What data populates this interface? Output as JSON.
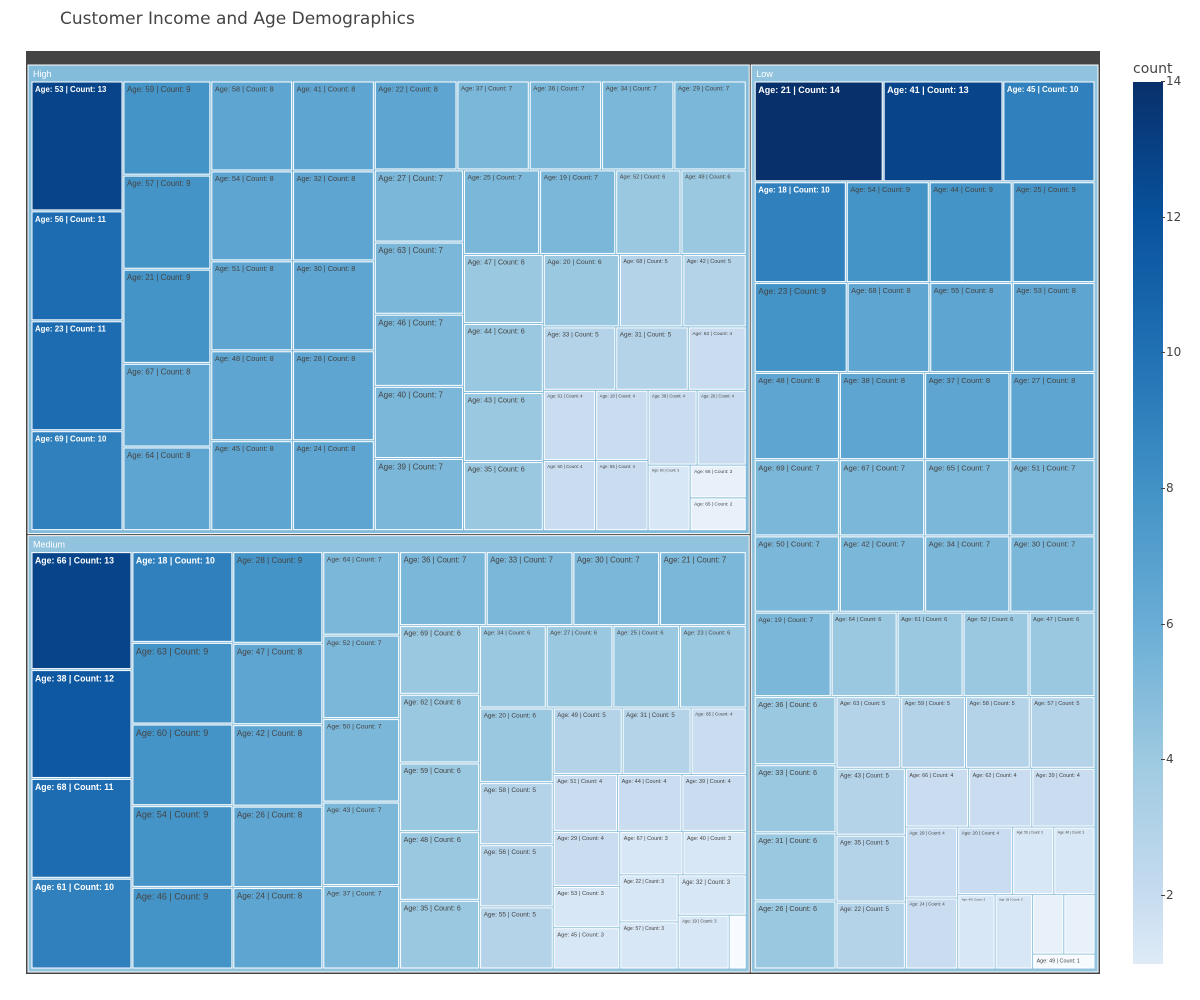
{
  "chart_data": {
    "type": "treemap",
    "title": "Customer Income and Age Demographics",
    "colorbar": {
      "title": "count",
      "range": [
        1,
        14
      ],
      "ticks": [
        2,
        4,
        6,
        8,
        10,
        12,
        14
      ]
    },
    "groups": [
      {
        "name": "High",
        "items": [
          {
            "age": 53,
            "count": 13
          },
          {
            "age": 56,
            "count": 11
          },
          {
            "age": 23,
            "count": 11
          },
          {
            "age": 69,
            "count": 10
          },
          {
            "age": 59,
            "count": 9
          },
          {
            "age": 57,
            "count": 9
          },
          {
            "age": 21,
            "count": 9
          },
          {
            "age": 67,
            "count": 8
          },
          {
            "age": 64,
            "count": 8
          },
          {
            "age": 58,
            "count": 8
          },
          {
            "age": 54,
            "count": 8
          },
          {
            "age": 51,
            "count": 8
          },
          {
            "age": 48,
            "count": 8
          },
          {
            "age": 45,
            "count": 8
          },
          {
            "age": 41,
            "count": 8
          },
          {
            "age": 32,
            "count": 8
          },
          {
            "age": 30,
            "count": 8
          },
          {
            "age": 28,
            "count": 8
          },
          {
            "age": 24,
            "count": 8
          },
          {
            "age": 22,
            "count": 8
          },
          {
            "age": 37,
            "count": 7
          },
          {
            "age": 36,
            "count": 7
          },
          {
            "age": 34,
            "count": 7
          },
          {
            "age": 29,
            "count": 7
          },
          {
            "age": 27,
            "count": 7
          },
          {
            "age": 63,
            "count": 7
          },
          {
            "age": 46,
            "count": 7
          },
          {
            "age": 40,
            "count": 7
          },
          {
            "age": 39,
            "count": 7
          },
          {
            "age": 25,
            "count": 7
          },
          {
            "age": 19,
            "count": 7
          },
          {
            "age": 52,
            "count": 6
          },
          {
            "age": 49,
            "count": 6
          },
          {
            "age": 47,
            "count": 6
          },
          {
            "age": 44,
            "count": 6
          },
          {
            "age": 43,
            "count": 6
          },
          {
            "age": 35,
            "count": 6
          },
          {
            "age": 20,
            "count": 6
          },
          {
            "age": 68,
            "count": 5
          },
          {
            "age": 42,
            "count": 5
          },
          {
            "age": 33,
            "count": 5
          },
          {
            "age": 31,
            "count": 5
          },
          {
            "age": 62,
            "count": 4
          },
          {
            "age": 61,
            "count": 4
          },
          {
            "age": 50,
            "count": 4
          },
          {
            "age": 18,
            "count": 4
          },
          {
            "age": 55,
            "count": 4
          },
          {
            "age": 38,
            "count": 4
          },
          {
            "age": 26,
            "count": 4
          },
          {
            "age": 60,
            "count": 3
          },
          {
            "age": 66,
            "count": 2
          },
          {
            "age": 65,
            "count": 2
          }
        ]
      },
      {
        "name": "Medium",
        "items": [
          {
            "age": 66,
            "count": 13
          },
          {
            "age": 38,
            "count": 12
          },
          {
            "age": 68,
            "count": 11
          },
          {
            "age": 61,
            "count": 10
          },
          {
            "age": 18,
            "count": 10
          },
          {
            "age": 63,
            "count": 9
          },
          {
            "age": 60,
            "count": 9
          },
          {
            "age": 54,
            "count": 9
          },
          {
            "age": 46,
            "count": 9
          },
          {
            "age": 28,
            "count": 9
          },
          {
            "age": 47,
            "count": 8
          },
          {
            "age": 42,
            "count": 8
          },
          {
            "age": 26,
            "count": 8
          },
          {
            "age": 24,
            "count": 8
          },
          {
            "age": 64,
            "count": 7
          },
          {
            "age": 52,
            "count": 7
          },
          {
            "age": 50,
            "count": 7
          },
          {
            "age": 43,
            "count": 7
          },
          {
            "age": 37,
            "count": 7
          },
          {
            "age": 36,
            "count": 7
          },
          {
            "age": 33,
            "count": 7
          },
          {
            "age": 30,
            "count": 7
          },
          {
            "age": 21,
            "count": 7
          },
          {
            "age": 69,
            "count": 6
          },
          {
            "age": 62,
            "count": 6
          },
          {
            "age": 59,
            "count": 6
          },
          {
            "age": 48,
            "count": 6
          },
          {
            "age": 35,
            "count": 6
          },
          {
            "age": 34,
            "count": 6
          },
          {
            "age": 27,
            "count": 6
          },
          {
            "age": 25,
            "count": 6
          },
          {
            "age": 23,
            "count": 6
          },
          {
            "age": 20,
            "count": 6
          },
          {
            "age": 58,
            "count": 5
          },
          {
            "age": 56,
            "count": 5
          },
          {
            "age": 55,
            "count": 5
          },
          {
            "age": 49,
            "count": 5
          },
          {
            "age": 31,
            "count": 5
          },
          {
            "age": 65,
            "count": 4
          },
          {
            "age": 51,
            "count": 4
          },
          {
            "age": 44,
            "count": 4
          },
          {
            "age": 39,
            "count": 4
          },
          {
            "age": 29,
            "count": 4
          },
          {
            "age": 53,
            "count": 3
          },
          {
            "age": 45,
            "count": 3
          },
          {
            "age": 67,
            "count": 3
          },
          {
            "age": 40,
            "count": 3
          },
          {
            "age": 22,
            "count": 3
          },
          {
            "age": 57,
            "count": 3
          },
          {
            "age": 32,
            "count": 3
          },
          {
            "age": 19,
            "count": 3
          },
          {
            "age": 41,
            "count": 1
          }
        ]
      },
      {
        "name": "Low",
        "items": [
          {
            "age": 21,
            "count": 14
          },
          {
            "age": 41,
            "count": 13
          },
          {
            "age": 45,
            "count": 10
          },
          {
            "age": 18,
            "count": 10
          },
          {
            "age": 54,
            "count": 9
          },
          {
            "age": 44,
            "count": 9
          },
          {
            "age": 25,
            "count": 9
          },
          {
            "age": 23,
            "count": 9
          },
          {
            "age": 68,
            "count": 8
          },
          {
            "age": 55,
            "count": 8
          },
          {
            "age": 53,
            "count": 8
          },
          {
            "age": 48,
            "count": 8
          },
          {
            "age": 38,
            "count": 8
          },
          {
            "age": 37,
            "count": 8
          },
          {
            "age": 27,
            "count": 8
          },
          {
            "age": 69,
            "count": 7
          },
          {
            "age": 67,
            "count": 7
          },
          {
            "age": 65,
            "count": 7
          },
          {
            "age": 51,
            "count": 7
          },
          {
            "age": 50,
            "count": 7
          },
          {
            "age": 42,
            "count": 7
          },
          {
            "age": 34,
            "count": 7
          },
          {
            "age": 30,
            "count": 7
          },
          {
            "age": 19,
            "count": 7
          },
          {
            "age": 64,
            "count": 6
          },
          {
            "age": 61,
            "count": 6
          },
          {
            "age": 52,
            "count": 6
          },
          {
            "age": 47,
            "count": 6
          },
          {
            "age": 36,
            "count": 6
          },
          {
            "age": 33,
            "count": 6
          },
          {
            "age": 31,
            "count": 6
          },
          {
            "age": 26,
            "count": 6
          },
          {
            "age": 63,
            "count": 5
          },
          {
            "age": 59,
            "count": 5
          },
          {
            "age": 58,
            "count": 5
          },
          {
            "age": 57,
            "count": 5
          },
          {
            "age": 43,
            "count": 5
          },
          {
            "age": 35,
            "count": 5
          },
          {
            "age": 22,
            "count": 5
          },
          {
            "age": 66,
            "count": 4
          },
          {
            "age": 62,
            "count": 4
          },
          {
            "age": 39,
            "count": 4
          },
          {
            "age": 29,
            "count": 4
          },
          {
            "age": 24,
            "count": 4
          },
          {
            "age": 20,
            "count": 4
          },
          {
            "age": 56,
            "count": 3
          },
          {
            "age": 46,
            "count": 3
          },
          {
            "age": 40,
            "count": 3
          },
          {
            "age": 28,
            "count": 3
          },
          {
            "age": 60,
            "count": 2
          },
          {
            "age": 32,
            "count": 2
          },
          {
            "age": 49,
            "count": 1
          }
        ]
      }
    ]
  }
}
